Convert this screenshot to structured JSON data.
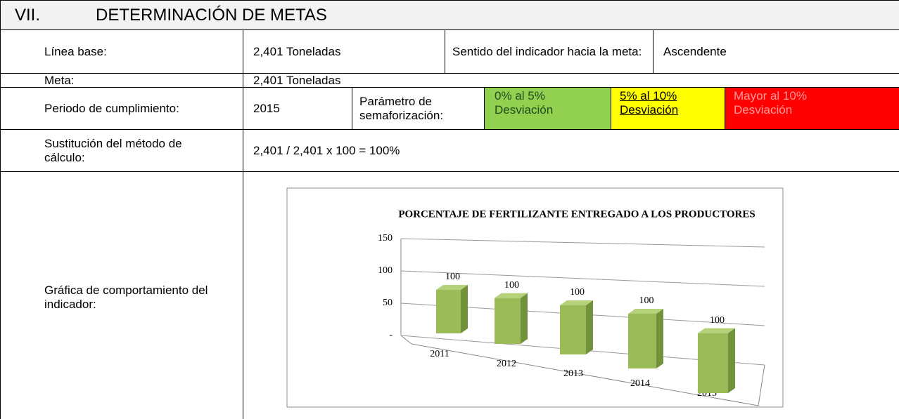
{
  "header": {
    "number": "VII.",
    "title": "DETERMINACIÓN DE METAS"
  },
  "rows": [
    [
      "Línea base:",
      "2,401 Toneladas",
      "Sentido del indicador hacia la meta:",
      "Ascendente"
    ],
    [
      "Meta:",
      "2,401 Toneladas"
    ],
    [
      "Periodo de cumplimiento:",
      "2015",
      "Parámetro de semaforización:",
      "0% al 5% Desviación",
      "5% al 10% Desviación",
      "Mayor al 10% Desviación"
    ],
    [
      "Sustitución del método de cálculo:",
      "2,401 / 2,401 x 100 = 100%"
    ],
    [
      "Gráfica de comportamiento del indicador:"
    ]
  ],
  "chart_data": {
    "type": "bar",
    "title": "PORCENTAJE  DE FERTILIZANTE ENTREGADO A LOS PRODUCTORES",
    "categories": [
      "2011",
      "2012",
      "2013",
      "2014",
      "2015"
    ],
    "values": [
      100,
      100,
      100,
      100,
      100
    ],
    "color": "#9bbb59",
    "ylim": [
      0,
      150
    ],
    "yticks": [
      {
        "value": 0,
        "label": "-"
      },
      50,
      100,
      150
    ],
    "grid": true
  }
}
